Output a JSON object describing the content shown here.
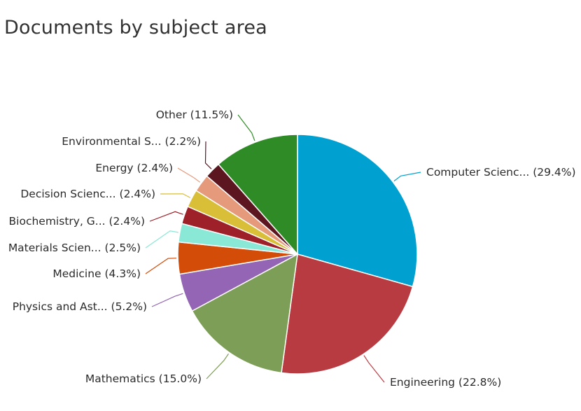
{
  "title": "Documents by subject area",
  "chart_data": {
    "type": "pie",
    "title": "Documents by subject area",
    "slices": [
      {
        "label": "Computer Scienc... (29.4%)",
        "value": 29.4,
        "color": "#00a1d0"
      },
      {
        "label": "Engineering (22.8%)",
        "value": 22.8,
        "color": "#b93b42"
      },
      {
        "label": "Mathematics (15.0%)",
        "value": 15.0,
        "color": "#7d9e56"
      },
      {
        "label": "Physics and Ast... (5.2%)",
        "value": 5.2,
        "color": "#9365b4"
      },
      {
        "label": "Medicine (4.3%)",
        "value": 4.3,
        "color": "#d44d08"
      },
      {
        "label": "Materials Scien... (2.5%)",
        "value": 2.5,
        "color": "#8ae8d6"
      },
      {
        "label": "Biochemistry, G... (2.4%)",
        "value": 2.4,
        "color": "#9e2129"
      },
      {
        "label": "Decision Scienc... (2.4%)",
        "value": 2.4,
        "color": "#d9be37"
      },
      {
        "label": "Energy (2.4%)",
        "value": 2.4,
        "color": "#e69a7c"
      },
      {
        "label": "Environmental S... (2.2%)",
        "value": 2.2,
        "color": "#5c1620"
      },
      {
        "label": "Other (11.5%)",
        "value": 11.5,
        "color": "#2f8b26"
      }
    ]
  }
}
